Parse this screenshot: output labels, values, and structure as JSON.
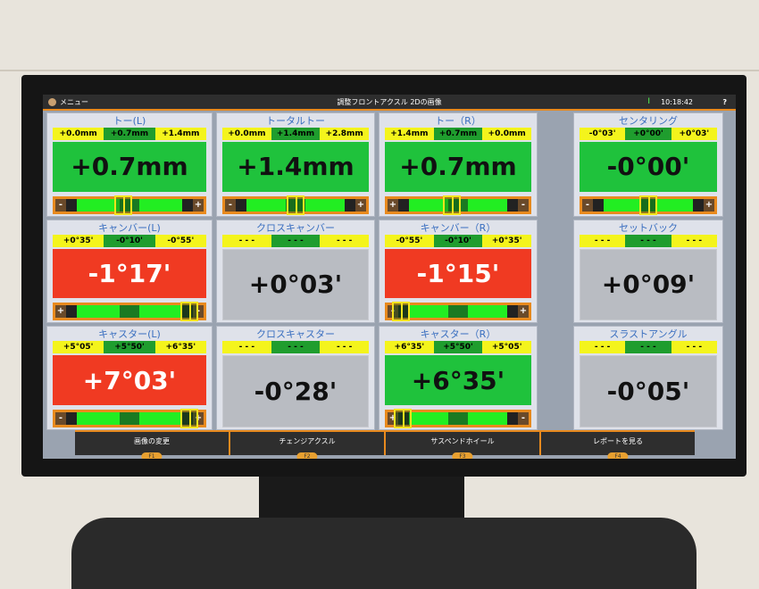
{
  "titlebar": {
    "menu_label": "メニュー",
    "title": "調整フロントアクスル 2Dの画像",
    "time": "10:18:42",
    "help": "?"
  },
  "colors": {
    "ok": "#1fc23c",
    "out_of_range": "#f03a22",
    "neutral": "#b9bcc2",
    "range_limit": "#f4f41c",
    "accent": "#e88a1e"
  },
  "cards": [
    {
      "title": "トー(L)",
      "ranges": [
        "+0.0mm",
        "+0.7mm",
        "+1.4mm"
      ],
      "value": "+0.7mm",
      "status": "green",
      "gauge": {
        "left": "-",
        "right": "+",
        "marker": 0.45
      }
    },
    {
      "title": "トータルトー",
      "ranges": [
        "+0.0mm",
        "+1.4mm",
        "+2.8mm"
      ],
      "value": "+1.4mm",
      "status": "green",
      "gauge": {
        "left": "-",
        "right": "+",
        "marker": 0.5
      }
    },
    {
      "title": "トー（R）",
      "ranges": [
        "+1.4mm",
        "+0.7mm",
        "+0.0mm"
      ],
      "value": "+0.7mm",
      "status": "green",
      "gauge": {
        "left": "+",
        "right": "-",
        "marker": 0.45
      }
    },
    {
      "title": "センタリング",
      "ranges": [
        "-0°03'",
        "+0°00'",
        "+0°03'"
      ],
      "value": "-0°00'",
      "status": "green",
      "gauge": {
        "left": "-",
        "right": "+",
        "marker": 0.5
      }
    },
    {
      "title": "キャンバー(L)",
      "ranges": [
        "+0°35'",
        "-0°10'",
        "-0°55'"
      ],
      "value": "-1°17'",
      "status": "red",
      "gauge": {
        "left": "+",
        "right": "-",
        "marker": 0.97
      }
    },
    {
      "title": "クロスキャンバー",
      "ranges": [
        "- - -",
        "- - -",
        "- - -"
      ],
      "value": "+0°03'",
      "status": "gray",
      "gauge": null
    },
    {
      "title": "キャンバー（R）",
      "ranges": [
        "-0°55'",
        "-0°10'",
        "+0°35'"
      ],
      "value": "-1°15'",
      "status": "red",
      "gauge": {
        "left": "-",
        "right": "+",
        "marker": 0.02
      }
    },
    {
      "title": "セットバック",
      "ranges": [
        "- - -",
        "- - -",
        "- - -"
      ],
      "value": "+0°09'",
      "status": "gray",
      "gauge": null
    },
    {
      "title": "キャスター(L)",
      "ranges": [
        "+5°05'",
        "+5°50'",
        "+6°35'"
      ],
      "value": "+7°03'",
      "status": "red",
      "gauge": {
        "left": "-",
        "right": "+",
        "marker": 0.97
      }
    },
    {
      "title": "クロスキャスター",
      "ranges": [
        "- - -",
        "- - -",
        "- - -"
      ],
      "value": "-0°28'",
      "status": "gray",
      "gauge": null
    },
    {
      "title": "キャスター（R）",
      "ranges": [
        "+6°35'",
        "+5°50'",
        "+5°05'"
      ],
      "value": "+6°35'",
      "status": "green",
      "gauge": {
        "left": "+",
        "right": "-",
        "marker": 0.04
      }
    },
    {
      "title": "スラストアングル",
      "ranges": [
        "- - -",
        "- - -",
        "- - -"
      ],
      "value": "-0°05'",
      "status": "gray",
      "gauge": null
    }
  ],
  "footer": [
    {
      "label": "画像の変更",
      "key": "F1"
    },
    {
      "label": "チェンジアクスル",
      "key": "F2"
    },
    {
      "label": "サスペンドホイール",
      "key": "F3"
    },
    {
      "label": "レポートを見る",
      "key": "F4"
    }
  ]
}
